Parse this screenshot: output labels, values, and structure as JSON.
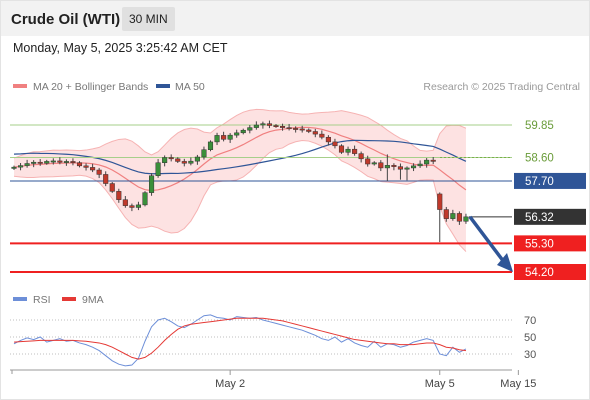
{
  "header": {
    "title": "Crude Oil (WTI)",
    "timeframe": "30 MIN"
  },
  "datetime": "Monday, May 5, 2025 3:25:42 AM CET",
  "legend": {
    "ma20_label": "MA 20 + Bollinger Bands",
    "ma50_label": "MA 50",
    "credit": "Research © 2025 Trading Central",
    "colors": {
      "ma20": "#f08080",
      "ma50": "#2f5597"
    }
  },
  "rsi_legend": {
    "rsi_label": "RSI",
    "ma_label": "9MA",
    "colors": {
      "rsi": "#6d8fd8",
      "ma": "#e53935"
    }
  },
  "chart_data": {
    "type": "candlestick",
    "price_axis": {
      "min": 53.8,
      "max": 60.6
    },
    "levels": [
      {
        "price": 59.85,
        "label": "59.85",
        "style": "green-line"
      },
      {
        "price": 58.6,
        "label": "58.60",
        "style": "green-dotted"
      },
      {
        "price": 57.7,
        "label": "57.70",
        "style": "blue-line"
      },
      {
        "price": 56.32,
        "label": "56.32",
        "style": "current-price"
      },
      {
        "price": 55.3,
        "label": "55.30",
        "style": "red-line"
      },
      {
        "price": 54.2,
        "label": "54.20",
        "style": "red-line"
      }
    ],
    "closes": [
      58.23,
      58.29,
      58.37,
      58.42,
      58.38,
      58.45,
      58.47,
      58.42,
      58.45,
      58.4,
      58.28,
      58.22,
      58.12,
      57.95,
      57.6,
      57.3,
      56.98,
      56.75,
      56.68,
      56.78,
      57.25,
      57.9,
      58.4,
      58.6,
      58.55,
      58.45,
      58.38,
      58.46,
      58.62,
      58.9,
      59.2,
      59.45,
      59.3,
      59.46,
      59.55,
      59.65,
      59.75,
      59.85,
      59.9,
      59.83,
      59.8,
      59.75,
      59.72,
      59.7,
      59.66,
      59.6,
      59.5,
      59.38,
      59.2,
      59.05,
      58.8,
      58.92,
      58.75,
      58.55,
      58.35,
      58.4,
      58.2,
      58.3,
      58.25,
      58.15,
      58.2,
      58.28,
      58.35,
      58.5,
      58.45,
      56.6,
      56.25,
      56.45,
      56.15,
      56.32
    ],
    "rsi": {
      "levels": [
        70,
        50,
        30
      ],
      "rsi_values": [
        42,
        46,
        49,
        47,
        50,
        44,
        46,
        48,
        45,
        46,
        43,
        41,
        38,
        34,
        28,
        22,
        18,
        16,
        17,
        25,
        45,
        62,
        70,
        72,
        68,
        63,
        61,
        65,
        70,
        75,
        76,
        73,
        72,
        70,
        74,
        73,
        72,
        73,
        70,
        68,
        66,
        64,
        62,
        60,
        58,
        55,
        52,
        48,
        46,
        50,
        44,
        48,
        43,
        40,
        38,
        45,
        38,
        42,
        41,
        38,
        40,
        44,
        46,
        48,
        46,
        30,
        28,
        38,
        32,
        36
      ],
      "ma_values": [
        44,
        44.5,
        45,
        45.5,
        46,
        46,
        46,
        46,
        46,
        46,
        45.5,
        45,
        44,
        43,
        41,
        38,
        34,
        30,
        26,
        24,
        26,
        31,
        38,
        46,
        53,
        59,
        63,
        65,
        66,
        67,
        68,
        69,
        70,
        71,
        72,
        72,
        72,
        72,
        72,
        71,
        70,
        69,
        67,
        65,
        63,
        61,
        59,
        57,
        55,
        53,
        51,
        49,
        47,
        46,
        45,
        44,
        43,
        42,
        42,
        41,
        41,
        41,
        42,
        43,
        43,
        41,
        38,
        37,
        35,
        34
      ]
    },
    "x_ticks": [
      {
        "label": "May 2",
        "index": 33
      },
      {
        "label": "May 5",
        "index": 65
      },
      {
        "label": "May 15",
        "index": 77
      }
    ]
  }
}
